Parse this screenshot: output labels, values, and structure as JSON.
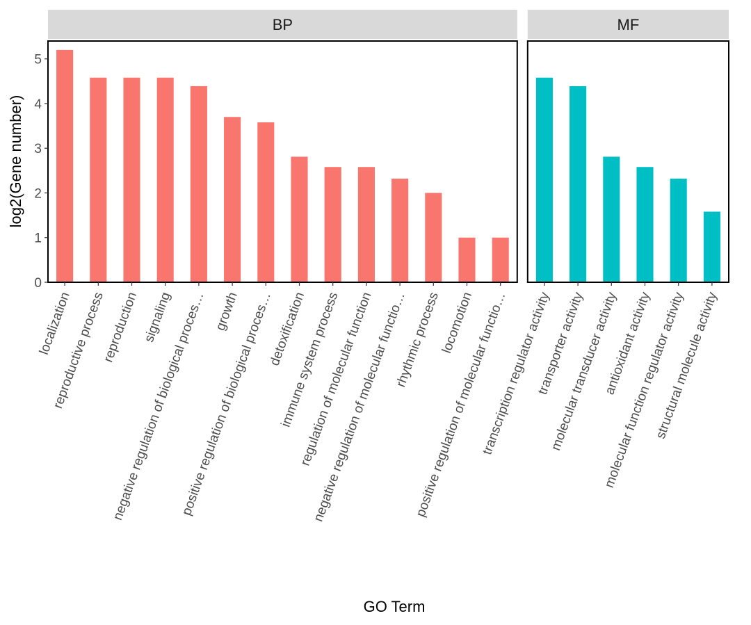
{
  "chart_data": {
    "type": "bar",
    "xlabel": "GO Term",
    "ylabel": "log2(Gene number)",
    "ylim": [
      0,
      5.4
    ],
    "yticks": [
      0,
      1,
      2,
      3,
      4,
      5
    ],
    "grid": false,
    "panels": [
      {
        "name": "BP",
        "color": "#F8766D",
        "categories": [
          "localization",
          "reproductive process",
          "reproduction",
          "signaling",
          "negative regulation of biological proces…",
          "growth",
          "positive regulation of biological proces…",
          "detoxification",
          "immune system process",
          "regulation of molecular function",
          "negative regulation of molecular functio…",
          "rhythmic process",
          "locomotion",
          "positive regulation of molecular functio…"
        ],
        "values": [
          5.2,
          4.58,
          4.58,
          4.58,
          4.39,
          3.7,
          3.58,
          2.81,
          2.58,
          2.58,
          2.32,
          2.0,
          1.0,
          1.0
        ]
      },
      {
        "name": "MF",
        "color": "#00BFC4",
        "categories": [
          "transcription regulator activity",
          "transporter activity",
          "molecular transducer activity",
          "antioxidant activity",
          "molecular function regulator activity",
          "structural molecule activity"
        ],
        "values": [
          4.58,
          4.39,
          2.81,
          2.58,
          2.32,
          1.58
        ]
      }
    ]
  }
}
